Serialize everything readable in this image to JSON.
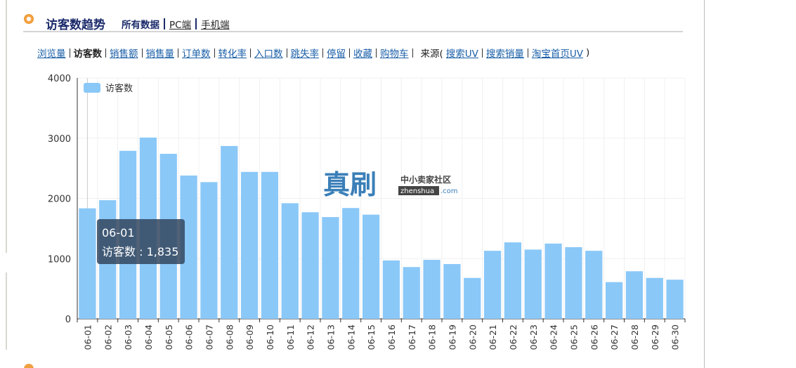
{
  "header": {
    "title": "访客数趋势",
    "tabs": [
      "所有数据",
      "PC端",
      "手机端"
    ]
  },
  "nav": {
    "metrics": [
      "浏览量",
      "访客数",
      "销售额",
      "销售量",
      "订单数",
      "转化率",
      "入口数",
      "跳失率",
      "停留",
      "收藏",
      "购物车"
    ],
    "source_label": "来源(",
    "sources": [
      "搜索UV",
      "搜索销量",
      "淘宝首页UV"
    ],
    "close": ")"
  },
  "watermark": {
    "main": "真刷",
    "sub": "中小卖家社区",
    "site": "zhenshua",
    "domain": ".com"
  },
  "chart_data": {
    "type": "bar",
    "categories": [
      "06-01",
      "06-02",
      "06-03",
      "06-04",
      "06-05",
      "06-06",
      "06-07",
      "06-08",
      "06-09",
      "06-10",
      "06-11",
      "06-12",
      "06-13",
      "06-14",
      "06-15",
      "06-16",
      "06-17",
      "06-18",
      "06-19",
      "06-20",
      "06-21",
      "06-22",
      "06-23",
      "06-24",
      "06-25",
      "06-26",
      "06-27",
      "06-28",
      "06-29",
      "06-30"
    ],
    "series": [
      {
        "name": "访客数",
        "color": "#8ac8f8",
        "values": [
          1835,
          1970,
          2790,
          3010,
          2740,
          2380,
          2270,
          2870,
          2440,
          2440,
          1920,
          1770,
          1690,
          1840,
          1730,
          970,
          860,
          980,
          910,
          680,
          1130,
          1270,
          1150,
          1250,
          1190,
          1130,
          610,
          790,
          680,
          650
        ]
      }
    ],
    "ylim": [
      0,
      4000
    ],
    "yticks": [
      0,
      1000,
      2000,
      3000,
      4000
    ],
    "grid": true,
    "legend": "top-left",
    "tooltip": {
      "title": "06-01",
      "text": "访客数 : 1,835"
    }
  }
}
